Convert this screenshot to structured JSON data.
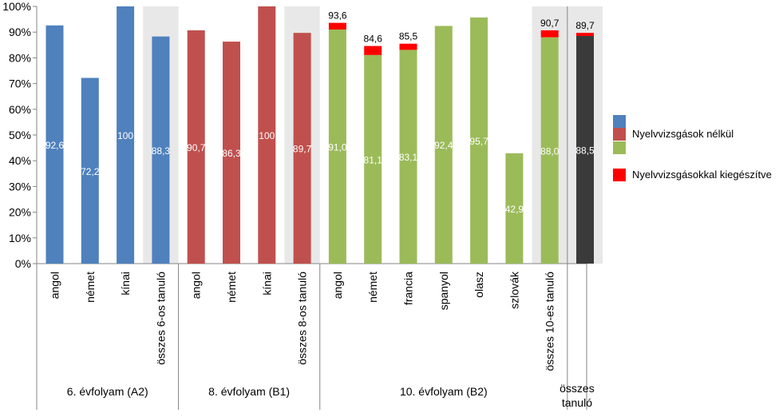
{
  "chart_data": {
    "type": "bar",
    "stacked": true,
    "ylim": [
      0,
      100
    ],
    "yticks": [
      "0%",
      "10%",
      "20%",
      "30%",
      "40%",
      "50%",
      "60%",
      "70%",
      "80%",
      "90%",
      "100%"
    ],
    "grid": false,
    "legend_position": "right",
    "groups": [
      {
        "label": "6. évfolyam (A2)",
        "color": "#4f81bd",
        "bars": [
          {
            "category": "angol",
            "base": 92.6,
            "base_label": "92,6",
            "extra": 0,
            "top_label": "",
            "highlight": false
          },
          {
            "category": "német",
            "base": 72.2,
            "base_label": "72,2",
            "extra": 0,
            "top_label": "",
            "highlight": false
          },
          {
            "category": "kínai",
            "base": 100,
            "base_label": "100",
            "extra": 0,
            "top_label": "",
            "highlight": false
          },
          {
            "category": "összes 6-os tanuló",
            "base": 88.3,
            "base_label": "88,3",
            "extra": 0,
            "top_label": "",
            "highlight": true
          }
        ]
      },
      {
        "label": "8. évfolyam (B1)",
        "color": "#c0504d",
        "bars": [
          {
            "category": "angol",
            "base": 90.7,
            "base_label": "90,7",
            "extra": 0,
            "top_label": "",
            "highlight": false
          },
          {
            "category": "német",
            "base": 86.3,
            "base_label": "86,3",
            "extra": 0,
            "top_label": "",
            "highlight": false
          },
          {
            "category": "kínai",
            "base": 100,
            "base_label": "100",
            "extra": 0,
            "top_label": "",
            "highlight": false
          },
          {
            "category": "összes 8-os tanuló",
            "base": 89.7,
            "base_label": "89,7",
            "extra": 0,
            "top_label": "",
            "highlight": true
          }
        ]
      },
      {
        "label": "10. évfolyam (B2)",
        "color": "#9bbb59",
        "bars": [
          {
            "category": "angol",
            "base": 91.0,
            "base_label": "91,0",
            "extra": 2.6,
            "top_label": "93,6",
            "highlight": false
          },
          {
            "category": "német",
            "base": 81.1,
            "base_label": "81,1",
            "extra": 3.5,
            "top_label": "84,6",
            "highlight": false
          },
          {
            "category": "francia",
            "base": 83.1,
            "base_label": "83,1",
            "extra": 2.4,
            "top_label": "85,5",
            "highlight": false
          },
          {
            "category": "spanyol",
            "base": 92.4,
            "base_label": "92,4",
            "extra": 0,
            "top_label": "",
            "highlight": false
          },
          {
            "category": "olasz",
            "base": 95.7,
            "base_label": "95,7",
            "extra": 0,
            "top_label": "",
            "highlight": false
          },
          {
            "category": "szlovák",
            "base": 42.9,
            "base_label": "42,9",
            "extra": 0,
            "top_label": "",
            "highlight": false
          },
          {
            "category": "összes 10-es tanuló",
            "base": 88.0,
            "base_label": "88,0",
            "extra": 2.7,
            "top_label": "90,7",
            "highlight": true
          }
        ]
      },
      {
        "label": "összes tanuló",
        "label_lines": [
          "összes",
          "tanuló"
        ],
        "color": "#3a3a3a",
        "bars": [
          {
            "category": "",
            "base": 88.5,
            "base_label": "88,5",
            "extra": 1.2,
            "top_label": "89,7",
            "highlight": true
          }
        ]
      }
    ],
    "legend": [
      {
        "name": "Nyelvvizsgások nélkül",
        "colors": [
          "#4f81bd",
          "#c0504d",
          "#9bbb59"
        ]
      },
      {
        "name": "Nyelvvizsgásokkal kiegészítve",
        "colors": [
          "#ff0000"
        ]
      }
    ],
    "extra_color": "#ff0000",
    "highlight_color": "#e8e8e8"
  }
}
